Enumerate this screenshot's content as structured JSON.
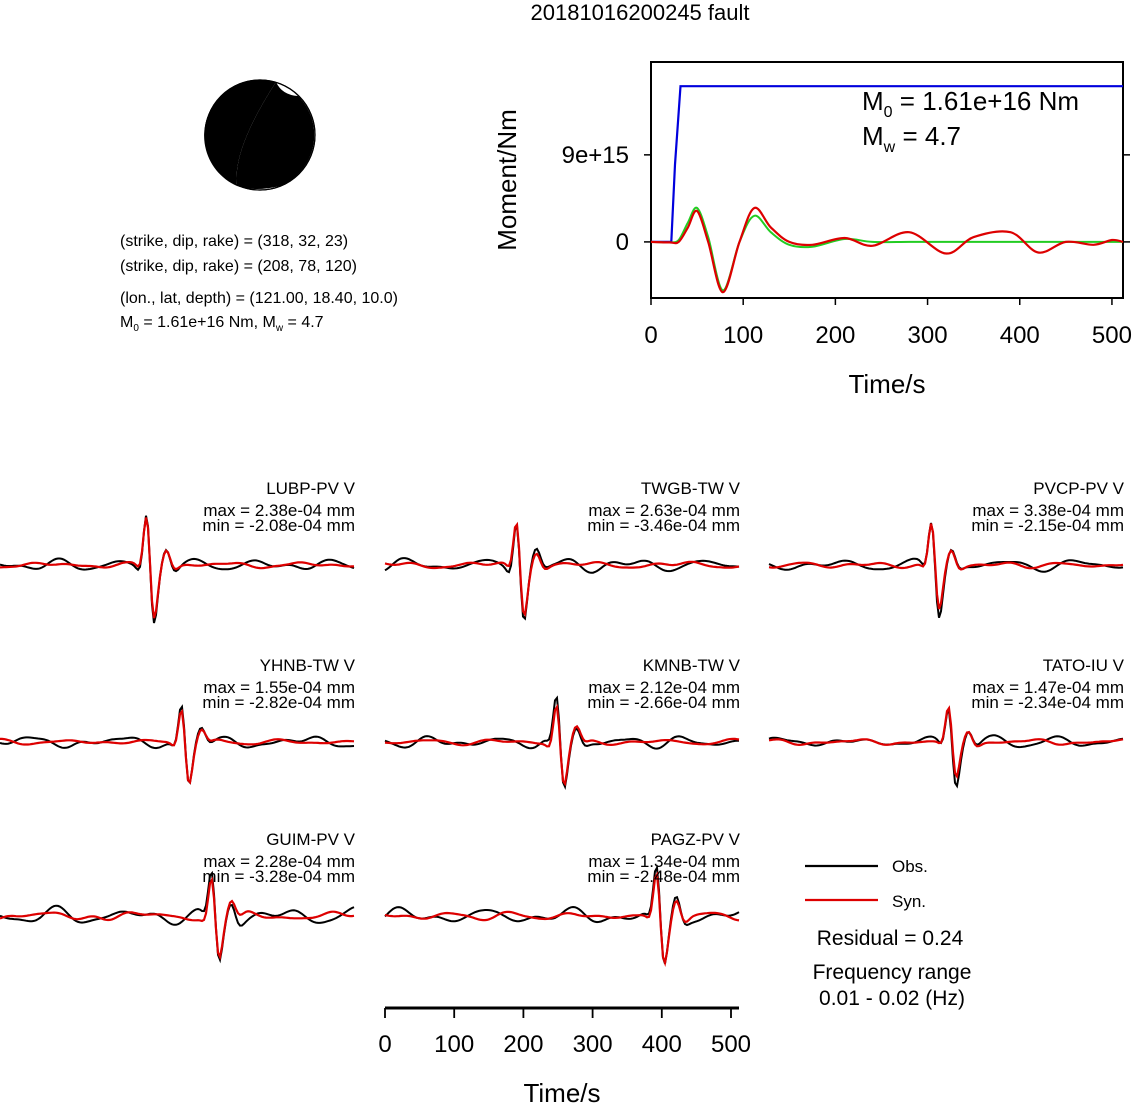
{
  "title": "20181016200245 fault",
  "mechanism": {
    "line1": "(strike, dip, rake) = (318, 32, 23)",
    "line2": "(strike, dip, rake) = (208, 78, 120)",
    "line3": "(lon., lat, depth) = (121.00, 18.40, 10.0)",
    "line4_m0": "M",
    "line4_sub0": "0",
    "line4_mid": " = 1.61e+16 Nm, M",
    "line4_subw": "w",
    "line4_end": " = 4.7"
  },
  "moment_plot": {
    "ylabel": "Moment/Nm",
    "xlabel": "Time/s",
    "ytick_labels": [
      "9e+15",
      "0"
    ],
    "xtick_labels": [
      "0",
      "100",
      "200",
      "300",
      "400",
      "500"
    ],
    "annot_m0_prefix": "M",
    "annot_m0_sub": "0",
    "annot_m0_value": " = 1.61e+16 Nm",
    "annot_mw_prefix": "M",
    "annot_mw_sub": "w",
    "annot_mw_value": " = 4.7",
    "colors": {
      "cumulative": "#0000dd",
      "rate_red": "#dd0000",
      "rate_green": "#22cc22"
    }
  },
  "stations": [
    {
      "name": "LUBP-PV V",
      "max": "max = 2.38e-04 mm",
      "min": "min = -2.08e-04 mm"
    },
    {
      "name": "TWGB-TW V",
      "max": "max = 2.63e-04 mm",
      "min": "min = -3.46e-04 mm"
    },
    {
      "name": "PVCP-PV V",
      "max": "max = 3.38e-04 mm",
      "min": "min = -2.15e-04 mm"
    },
    {
      "name": "YHNB-TW V",
      "max": "max = 1.55e-04 mm",
      "min": "min = -2.82e-04 mm"
    },
    {
      "name": "KMNB-TW V",
      "max": "max = 2.12e-04 mm",
      "min": "min = -2.66e-04 mm"
    },
    {
      "name": "TATO-IU V",
      "max": "max = 1.47e-04 mm",
      "min": "min = -2.34e-04 mm"
    },
    {
      "name": "GUIM-PV V",
      "max": "max = 2.28e-04 mm",
      "min": "min = -3.28e-04 mm"
    },
    {
      "name": "PAGZ-PV V",
      "max": "max = 1.34e-04 mm",
      "min": "min = -2.48e-04 mm"
    }
  ],
  "legend": {
    "obs": "Obs.",
    "syn": "Syn.",
    "residual": "Residual = 0.24",
    "freq_label": "Frequency range",
    "freq_value": "0.01 - 0.02 (Hz)",
    "obs_color": "#000000",
    "syn_color": "#dd0000"
  },
  "bottom_axis": {
    "xlabel": "Time/s",
    "xtick_labels": [
      "0",
      "100",
      "200",
      "300",
      "400",
      "500"
    ]
  },
  "chart_data": [
    {
      "type": "line",
      "title": "",
      "xlabel": "Time/s",
      "ylabel": "Moment/Nm",
      "xlim": [
        0,
        512
      ],
      "ylim": [
        -5800000000000000.0,
        1.86e+16
      ],
      "series": [
        {
          "x": [
            0,
            22,
            26,
            32,
            512
          ],
          "values": [
            0,
            0,
            8000000000000000.0,
            1.61e+16,
            1.61e+16
          ]
        },
        {
          "x": [
            0,
            20,
            30,
            40,
            50,
            62,
            78,
            96,
            112,
            130,
            150,
            175,
            210,
            240,
            280,
            320,
            350,
            390,
            420,
            450,
            480,
            500,
            512
          ],
          "values": [
            0,
            -50000000000000.0,
            0,
            1500000000000000.0,
            3200000000000000.0,
            0,
            -5200000000000000.0,
            0,
            3500000000000000.0,
            1500000000000000.0,
            0,
            -300000000000000.0,
            400000000000000.0,
            -400000000000000.0,
            1000000000000000.0,
            -1200000000000000.0,
            500000000000000.0,
            1000000000000000.0,
            -1100000000000000.0,
            0,
            -300000000000000.0,
            200000000000000.0,
            0
          ]
        },
        {
          "x": [
            0,
            20,
            30,
            40,
            50,
            62,
            78,
            96,
            112,
            130,
            150,
            175,
            210,
            240,
            280,
            320,
            512
          ],
          "values": [
            0,
            -50000000000000.0,
            200000000000000.0,
            2000000000000000.0,
            3500000000000000.0,
            500000000000000.0,
            -5000000000000000.0,
            0,
            2700000000000000.0,
            1000000000000000.0,
            -300000000000000.0,
            -500000000000000.0,
            300000000000000.0,
            0,
            0,
            0,
            0
          ]
        }
      ]
    }
  ]
}
